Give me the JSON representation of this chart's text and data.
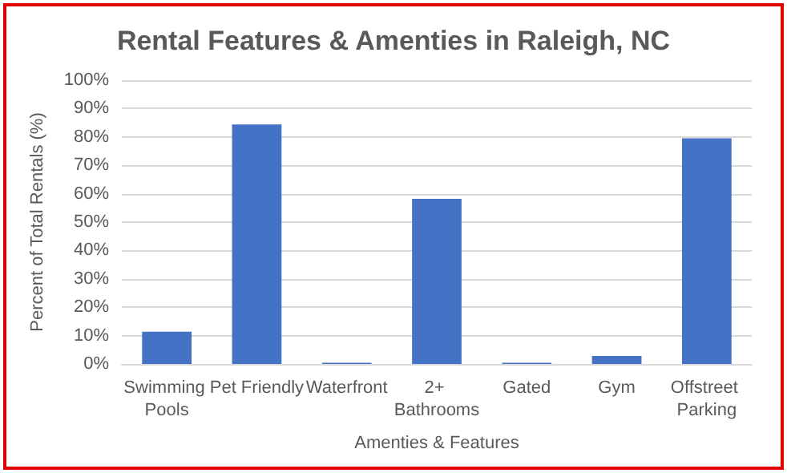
{
  "chart_data": {
    "type": "bar",
    "title": "Rental Features & Amenties in Raleigh, NC",
    "xlabel": "Amenties & Features",
    "ylabel": "Percent of Total Rentals (%)",
    "categories": [
      "Swimming Pools",
      "Pet Friendly",
      "Waterfront",
      "2+ Bathrooms",
      "Gated",
      "Gym",
      "Offstreet Parking"
    ],
    "values": [
      11.4,
      84.4,
      0.4,
      58.2,
      0.4,
      2.8,
      79.5
    ],
    "color": "#4472c4",
    "ylim": [
      0,
      100
    ],
    "yticks": [
      {
        "value": 0,
        "label": "0%"
      },
      {
        "value": 10,
        "label": "10%"
      },
      {
        "value": 20,
        "label": "20%"
      },
      {
        "value": 30,
        "label": "30%"
      },
      {
        "value": 40,
        "label": "40%"
      },
      {
        "value": 50,
        "label": "50%"
      },
      {
        "value": 60,
        "label": "60%"
      },
      {
        "value": 70,
        "label": "70%"
      },
      {
        "value": 80,
        "label": "80%"
      },
      {
        "value": 90,
        "label": "90%"
      },
      {
        "value": 100,
        "label": "100%"
      }
    ],
    "grid": "y"
  }
}
